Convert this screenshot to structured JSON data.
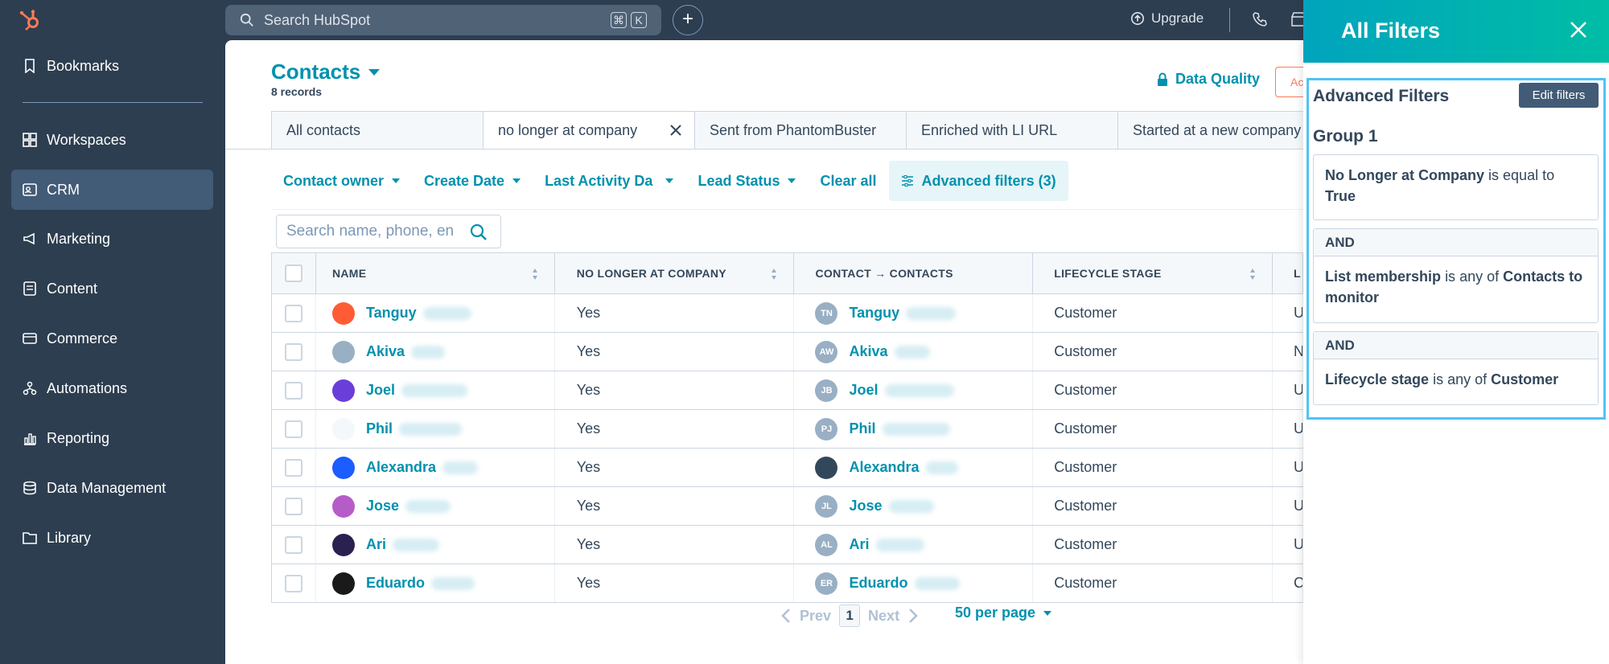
{
  "topbar": {
    "search_placeholder": "Search HubSpot",
    "kbd1": "⌘",
    "kbd2": "K",
    "upgrade": "Upgrade"
  },
  "sidebar": {
    "items": [
      {
        "label": "Bookmarks"
      },
      {
        "label": "Workspaces"
      },
      {
        "label": "CRM"
      },
      {
        "label": "Marketing"
      },
      {
        "label": "Content"
      },
      {
        "label": "Commerce"
      },
      {
        "label": "Automations"
      },
      {
        "label": "Reporting"
      },
      {
        "label": "Data Management"
      },
      {
        "label": "Library"
      }
    ]
  },
  "main": {
    "title": "Contacts",
    "records": "8 records",
    "data_quality": "Data Quality",
    "actions_label": "Ac",
    "tabs": [
      "All contacts",
      "no longer at company",
      "Sent from PhantomBuster",
      "Enriched with LI URL",
      "Started at a new company"
    ],
    "filters": [
      "Contact owner",
      "Create Date",
      "Last Activity Da",
      "Lead Status",
      "Clear all",
      "Advanced filters (3)"
    ],
    "table_search_placeholder": "Search name, phone, en",
    "columns": [
      "NAME",
      "NO LONGER AT COMPANY",
      "CONTACT → CONTACTS",
      "LIFECYCLE STAGE",
      "L"
    ],
    "rows": [
      {
        "name": "Tanguy",
        "no_longer": "Yes",
        "contact": "Tanguy",
        "initials": "TN",
        "stage": "Customer",
        "last": "U"
      },
      {
        "name": "Akiva",
        "no_longer": "Yes",
        "contact": "Akiva",
        "initials": "AW",
        "stage": "Customer",
        "last": "N"
      },
      {
        "name": "Joel",
        "no_longer": "Yes",
        "contact": "Joel",
        "initials": "JB",
        "stage": "Customer",
        "last": "U"
      },
      {
        "name": "Phil",
        "no_longer": "Yes",
        "contact": "Phil",
        "initials": "PJ",
        "stage": "Customer",
        "last": "U"
      },
      {
        "name": "Alexandra",
        "no_longer": "Yes",
        "contact": "Alexandra",
        "initials": "",
        "stage": "Customer",
        "last": "U"
      },
      {
        "name": "Jose",
        "no_longer": "Yes",
        "contact": "Jose",
        "initials": "JL",
        "stage": "Customer",
        "last": "U"
      },
      {
        "name": "Ari",
        "no_longer": "Yes",
        "contact": "Ari",
        "initials": "AL",
        "stage": "Customer",
        "last": "U"
      },
      {
        "name": "Eduardo",
        "no_longer": "Yes",
        "contact": "Eduardo",
        "initials": "ER",
        "stage": "Customer",
        "last": "C"
      }
    ],
    "pager": {
      "prev": "Prev",
      "page": "1",
      "next": "Next",
      "per_page": "50 per page"
    }
  },
  "panel": {
    "title": "All Filters",
    "advanced_title": "Advanced Filters",
    "edit_button": "Edit filters",
    "group": "Group 1",
    "and": "AND",
    "f1_prop": "No Longer at Company",
    "f1_op": "is equal to",
    "f1_val": "True",
    "f2_prop": "List membership",
    "f2_op": "is any of",
    "f2_val": "Contacts to monitor",
    "f3_prop": "Lifecycle stage",
    "f3_op": "is any of",
    "f3_val": "Customer"
  },
  "colors": {
    "accent": "#0091ae",
    "sidebar": "#2d3e50",
    "panel_gradient_start": "#00a4bd",
    "panel_gradient_end": "#00bda5"
  }
}
